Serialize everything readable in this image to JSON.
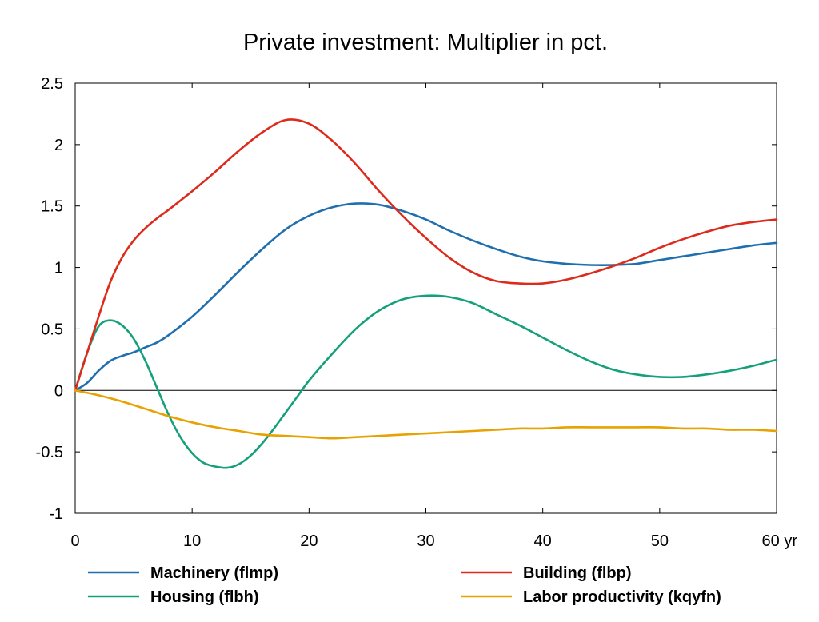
{
  "chart_data": {
    "type": "line",
    "title": "Private investment: Multiplier in pct.",
    "xlabel": "",
    "ylabel": "",
    "xlim": [
      0,
      60
    ],
    "ylim": [
      -1,
      2.5
    ],
    "x_ticks": [
      0,
      10,
      20,
      30,
      40,
      50,
      60
    ],
    "x_tick_labels": [
      "0",
      "10",
      "20",
      "30",
      "40",
      "50",
      "60 yr"
    ],
    "y_ticks": [
      -1,
      -0.5,
      0,
      0.5,
      1,
      1.5,
      2,
      2.5
    ],
    "y_tick_labels": [
      "-1",
      "-0.5",
      "0",
      "0.5",
      "1",
      "1.5",
      "2",
      "2.5"
    ],
    "grid": false,
    "zero_line": true,
    "legend_position": "bottom",
    "series": [
      {
        "name": "Machinery (flmp)",
        "color": "#1f6fb0",
        "x": [
          0,
          1,
          2,
          3,
          4,
          5,
          6,
          7,
          8,
          10,
          12,
          14,
          16,
          18,
          20,
          22,
          24,
          26,
          28,
          30,
          32,
          34,
          36,
          38,
          40,
          42,
          44,
          46,
          48,
          50,
          52,
          54,
          56,
          58,
          60
        ],
        "y": [
          0,
          0.06,
          0.16,
          0.24,
          0.28,
          0.31,
          0.35,
          0.39,
          0.45,
          0.6,
          0.78,
          0.97,
          1.15,
          1.31,
          1.42,
          1.49,
          1.52,
          1.51,
          1.46,
          1.39,
          1.3,
          1.22,
          1.15,
          1.09,
          1.05,
          1.03,
          1.02,
          1.02,
          1.03,
          1.06,
          1.09,
          1.12,
          1.15,
          1.18,
          1.2
        ]
      },
      {
        "name": "Housing (flbh)",
        "color": "#14a07a",
        "x": [
          0,
          1,
          2,
          3,
          4,
          5,
          6,
          7,
          8,
          9,
          10,
          11,
          12,
          13,
          14,
          15,
          16,
          17,
          18,
          19,
          20,
          22,
          24,
          26,
          28,
          30,
          32,
          34,
          36,
          38,
          40,
          42,
          44,
          46,
          48,
          50,
          52,
          54,
          56,
          58,
          60
        ],
        "y": [
          0,
          0.3,
          0.52,
          0.57,
          0.53,
          0.42,
          0.24,
          0.02,
          -0.2,
          -0.38,
          -0.51,
          -0.59,
          -0.62,
          -0.63,
          -0.6,
          -0.53,
          -0.43,
          -0.31,
          -0.18,
          -0.05,
          0.08,
          0.3,
          0.5,
          0.65,
          0.74,
          0.77,
          0.76,
          0.71,
          0.62,
          0.53,
          0.43,
          0.33,
          0.24,
          0.17,
          0.13,
          0.11,
          0.11,
          0.13,
          0.16,
          0.2,
          0.25
        ]
      },
      {
        "name": "Building (flbp)",
        "color": "#dd2a1b",
        "x": [
          0,
          1,
          2,
          3,
          4,
          5,
          6,
          7,
          8,
          10,
          12,
          14,
          16,
          18,
          20,
          22,
          24,
          26,
          28,
          30,
          32,
          34,
          36,
          38,
          40,
          42,
          44,
          46,
          48,
          50,
          52,
          54,
          56,
          58,
          60
        ],
        "y": [
          0,
          0.3,
          0.6,
          0.88,
          1.08,
          1.22,
          1.32,
          1.4,
          1.47,
          1.62,
          1.78,
          1.95,
          2.1,
          2.2,
          2.17,
          2.03,
          1.84,
          1.62,
          1.42,
          1.24,
          1.08,
          0.96,
          0.89,
          0.87,
          0.87,
          0.9,
          0.95,
          1.01,
          1.08,
          1.16,
          1.23,
          1.29,
          1.34,
          1.37,
          1.39
        ]
      },
      {
        "name": "Labor productivity (kqyfn)",
        "color": "#e8a200",
        "x": [
          0,
          2,
          4,
          6,
          8,
          10,
          12,
          14,
          16,
          18,
          20,
          22,
          24,
          26,
          28,
          30,
          32,
          34,
          36,
          38,
          40,
          42,
          44,
          46,
          48,
          50,
          52,
          54,
          56,
          58,
          60
        ],
        "y": [
          0,
          -0.04,
          -0.09,
          -0.15,
          -0.21,
          -0.26,
          -0.3,
          -0.33,
          -0.36,
          -0.37,
          -0.38,
          -0.39,
          -0.38,
          -0.37,
          -0.36,
          -0.35,
          -0.34,
          -0.33,
          -0.32,
          -0.31,
          -0.31,
          -0.3,
          -0.3,
          -0.3,
          -0.3,
          -0.3,
          -0.31,
          -0.31,
          -0.32,
          -0.32,
          -0.33
        ]
      }
    ]
  }
}
